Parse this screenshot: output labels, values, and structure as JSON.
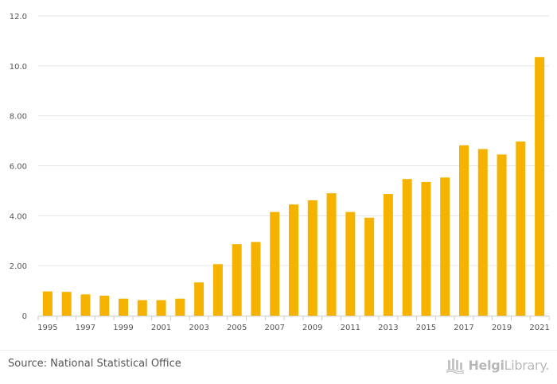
{
  "chart_data": {
    "type": "bar",
    "title": "",
    "xlabel": "",
    "ylabel": "",
    "ylim": [
      0,
      12
    ],
    "y_ticks": [
      "0",
      "2.00",
      "4.00",
      "6.00",
      "8.00",
      "10.0",
      "12.0"
    ],
    "x_tick_labels": [
      "1995",
      "1997",
      "1999",
      "2001",
      "2003",
      "2005",
      "2007",
      "2009",
      "2011",
      "2013",
      "2015",
      "2017",
      "2019",
      "2021"
    ],
    "categories": [
      "1995",
      "1996",
      "1997",
      "1998",
      "1999",
      "2000",
      "2001",
      "2002",
      "2003",
      "2004",
      "2005",
      "2006",
      "2007",
      "2008",
      "2009",
      "2010",
      "2011",
      "2012",
      "2013",
      "2014",
      "2015",
      "2016",
      "2017",
      "2018",
      "2019",
      "2020",
      "2021"
    ],
    "values": [
      0.97,
      0.95,
      0.85,
      0.8,
      0.68,
      0.62,
      0.62,
      0.68,
      1.33,
      2.06,
      2.86,
      2.95,
      4.15,
      4.45,
      4.62,
      4.9,
      4.15,
      3.92,
      4.87,
      5.47,
      5.35,
      5.53,
      6.82,
      6.67,
      6.45,
      6.97,
      10.35
    ],
    "bar_color": "#f5b300",
    "grid": true
  },
  "footer": {
    "source": "Source: National Statistical Office",
    "brand_bold": "Helgi",
    "brand_regular": "Library."
  }
}
